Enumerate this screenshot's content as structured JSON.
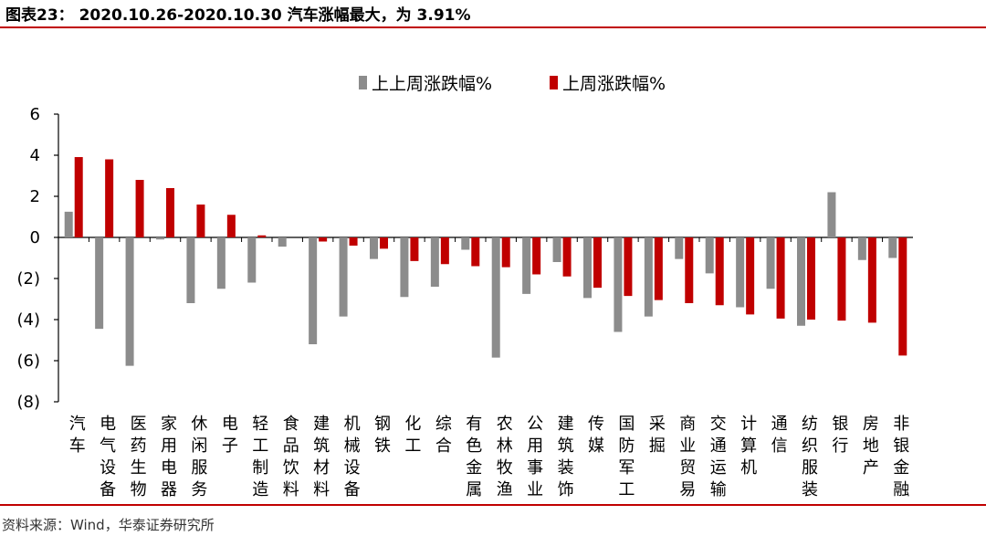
{
  "title": "图表23： 2020.10.26-2020.10.30 汽车涨幅最大，为 3.91%",
  "source": "资料来源：Wind，华泰证券研究所",
  "colors": {
    "prev_week": "#8c8c8c",
    "last_week": "#c00000",
    "accent_rule": "#c00000"
  },
  "chart_data": {
    "type": "bar",
    "categories": [
      "汽车",
      "电气设备",
      "医药生物",
      "家用电器",
      "休闲服务",
      "电子",
      "轻工制造",
      "食品饮料",
      "建筑材料",
      "机械设备",
      "钢铁",
      "化工",
      "综合",
      "有色金属",
      "农林牧渔",
      "公用事业",
      "建筑装饰",
      "传媒",
      "国防军工",
      "采掘",
      "商业贸易",
      "交通运输",
      "计算机",
      "通信",
      "纺织服装",
      "银行",
      "房地产",
      "非银金融"
    ],
    "series": [
      {
        "name": "上上周涨跌幅%",
        "color": "#8c8c8c",
        "values": [
          1.25,
          -4.45,
          -6.25,
          -0.1,
          -3.2,
          -2.5,
          -2.2,
          -0.45,
          -5.2,
          -3.85,
          -1.05,
          -2.9,
          -2.4,
          -0.6,
          -5.85,
          -2.75,
          -1.2,
          -2.95,
          -4.6,
          -3.85,
          -1.05,
          -1.75,
          -3.4,
          -2.5,
          -4.3,
          2.2,
          -1.1,
          -1.0
        ]
      },
      {
        "name": "上周涨跌幅%",
        "color": "#c00000",
        "values": [
          3.91,
          3.8,
          2.8,
          2.4,
          1.6,
          1.1,
          0.1,
          0.0,
          -0.2,
          -0.4,
          -0.55,
          -1.15,
          -1.3,
          -1.4,
          -1.45,
          -1.8,
          -1.9,
          -2.45,
          -2.85,
          -3.05,
          -3.2,
          -3.3,
          -3.75,
          -3.95,
          -4.0,
          -4.05,
          -4.15,
          -5.75
        ]
      }
    ],
    "ylim": [
      -8,
      6
    ],
    "yticks": [
      6,
      4,
      2,
      0,
      -2,
      -4,
      -6,
      -8
    ],
    "ytick_labels": [
      "6",
      "4",
      "2",
      "0",
      "(2)",
      "(4)",
      "(6)",
      "(8)"
    ],
    "xlabel": "",
    "ylabel": "",
    "legend_position": "top-center",
    "grid": false
  }
}
